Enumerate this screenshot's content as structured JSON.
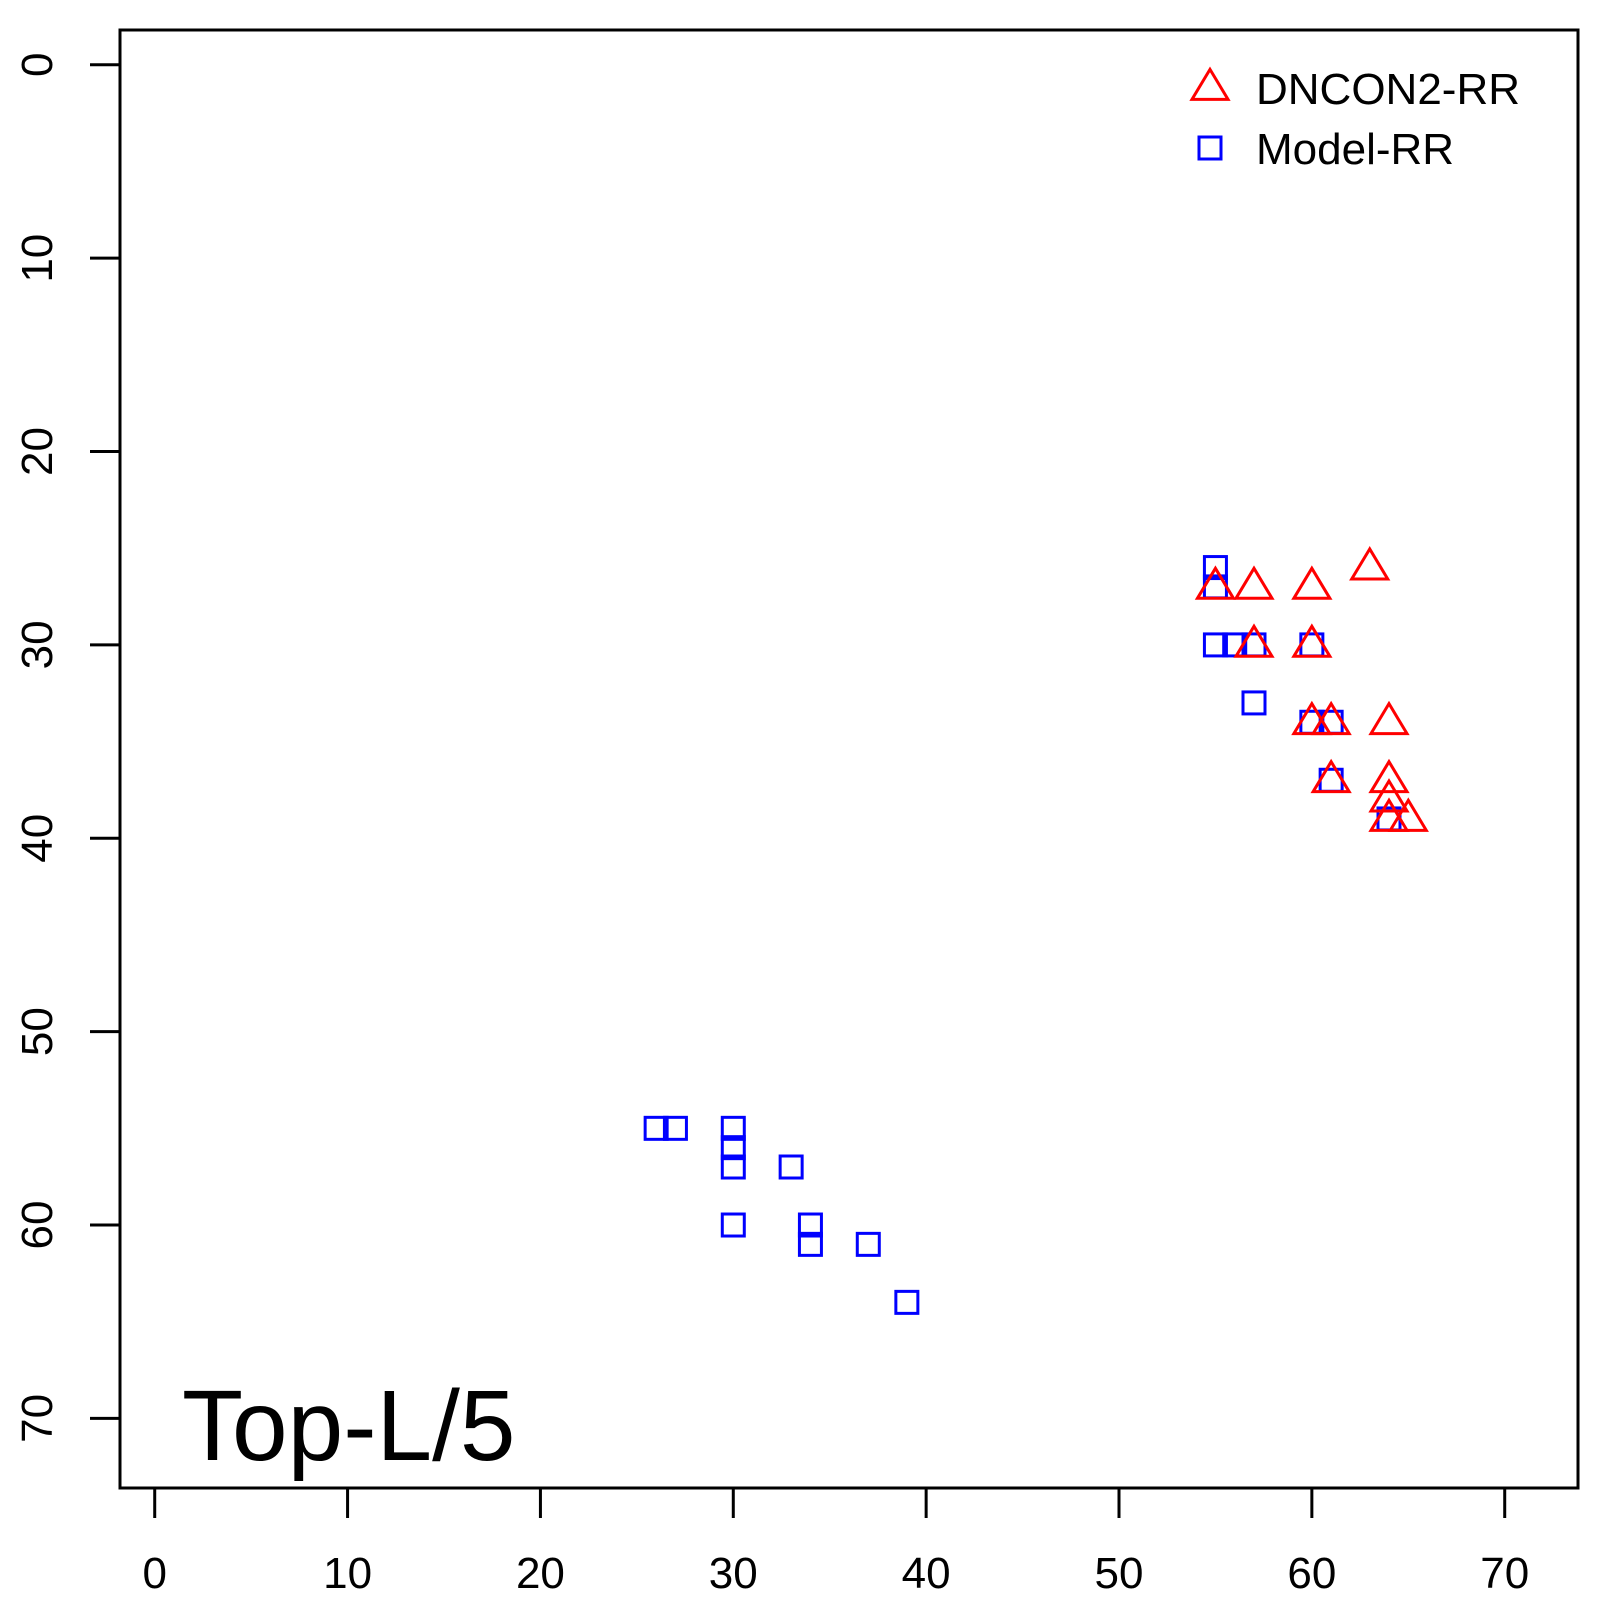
{
  "chart_data": {
    "type": "scatter",
    "title": "",
    "xlabel": "",
    "ylabel": "",
    "xlim": [
      -1.8,
      73.8
    ],
    "ylim": [
      73.6,
      -1.8
    ],
    "y_axis_reversed": true,
    "grid": false,
    "legend_position": "top-right",
    "x_ticks": [
      0,
      10,
      20,
      30,
      40,
      50,
      60,
      70
    ],
    "y_ticks": [
      0,
      10,
      20,
      30,
      40,
      50,
      60,
      70
    ],
    "annotation": "Top-L/5",
    "series": [
      {
        "name": "DNCON2-RR",
        "marker": "triangle",
        "color": "#ff0000",
        "points": [
          [
            55,
            27
          ],
          [
            57,
            27
          ],
          [
            60,
            27
          ],
          [
            63,
            26
          ],
          [
            57,
            30
          ],
          [
            60,
            30
          ],
          [
            60,
            34
          ],
          [
            61,
            34
          ],
          [
            64,
            34
          ],
          [
            61,
            37
          ],
          [
            64,
            37
          ],
          [
            64,
            38
          ],
          [
            64,
            39
          ],
          [
            65,
            39
          ]
        ]
      },
      {
        "name": "Model-RR",
        "marker": "square",
        "color": "#0000ff",
        "points": [
          [
            55,
            26
          ],
          [
            55,
            27
          ],
          [
            55,
            30
          ],
          [
            56,
            30
          ],
          [
            57,
            30
          ],
          [
            60,
            30
          ],
          [
            57,
            33
          ],
          [
            60,
            34
          ],
          [
            61,
            34
          ],
          [
            61,
            37
          ],
          [
            64,
            39
          ],
          [
            26,
            55
          ],
          [
            27,
            55
          ],
          [
            30,
            55
          ],
          [
            30,
            56
          ],
          [
            30,
            57
          ],
          [
            33,
            57
          ],
          [
            30,
            60
          ],
          [
            34,
            60
          ],
          [
            34,
            61
          ],
          [
            37,
            61
          ],
          [
            39,
            64
          ]
        ]
      }
    ]
  }
}
